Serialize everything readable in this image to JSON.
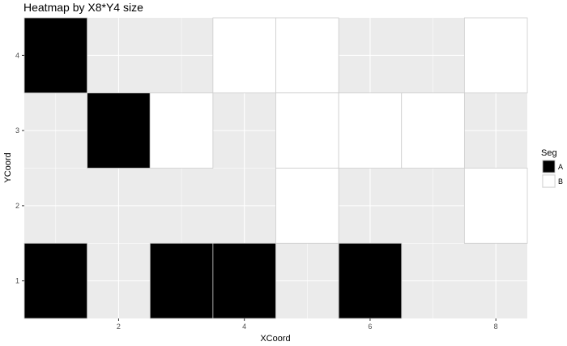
{
  "chart_data": {
    "type": "heatmap",
    "title": "Heatmap by X8*Y4 size",
    "xlabel": "XCoord",
    "ylabel": "YCoord",
    "xlim": [
      0.5,
      8.5
    ],
    "ylim": [
      0.5,
      4.5
    ],
    "x_ticks": [
      2,
      4,
      6,
      8
    ],
    "y_ticks": [
      1,
      2,
      3,
      4
    ],
    "grid": true,
    "legend": {
      "title": "Seg",
      "position": "right",
      "entries": [
        {
          "label": "A",
          "color": "#000000"
        },
        {
          "label": "B",
          "color": "#ffffff"
        }
      ]
    },
    "cells": [
      {
        "x": 1,
        "y": 4,
        "seg": "A"
      },
      {
        "x": 4,
        "y": 4,
        "seg": "B"
      },
      {
        "x": 5,
        "y": 4,
        "seg": "B"
      },
      {
        "x": 8,
        "y": 4,
        "seg": "B"
      },
      {
        "x": 2,
        "y": 3,
        "seg": "A"
      },
      {
        "x": 3,
        "y": 3,
        "seg": "B"
      },
      {
        "x": 5,
        "y": 3,
        "seg": "B"
      },
      {
        "x": 6,
        "y": 3,
        "seg": "B"
      },
      {
        "x": 7,
        "y": 3,
        "seg": "B"
      },
      {
        "x": 5,
        "y": 2,
        "seg": "B"
      },
      {
        "x": 8,
        "y": 2,
        "seg": "B"
      },
      {
        "x": 1,
        "y": 1,
        "seg": "A"
      },
      {
        "x": 3,
        "y": 1,
        "seg": "A"
      },
      {
        "x": 4,
        "y": 1,
        "seg": "A"
      },
      {
        "x": 6,
        "y": 1,
        "seg": "A"
      }
    ]
  },
  "colors": {
    "panel_background": "#ebebeb",
    "grid_major": "#ffffff",
    "cell_border": "#cccccc",
    "A": "#000000",
    "B": "#ffffff"
  }
}
